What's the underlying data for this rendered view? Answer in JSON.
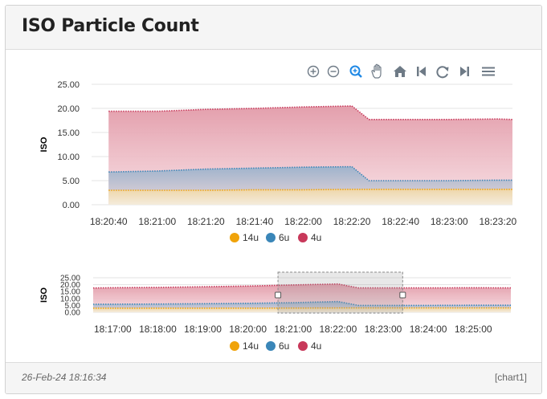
{
  "card": {
    "title": "ISO Particle Count",
    "footer_date": "26-Feb-24 18:16:34",
    "footer_id": "[chart1]"
  },
  "toolbar": {
    "icons": [
      "zoom-in-icon",
      "zoom-out-icon",
      "selection-zoom-icon",
      "pan-icon",
      "home-icon",
      "step-back-icon",
      "refresh-icon",
      "step-forward-icon",
      "menu-icon"
    ]
  },
  "colors": {
    "14u": "#f0a30a",
    "6u": "#3a86b8",
    "4u": "#c8385a",
    "4u_fill": "#e8a0ae",
    "6u_fill": "#9fb6d0",
    "14u_fill": "#f2d9b0"
  },
  "chart_data": [
    {
      "type": "area",
      "ylabel": "ISO",
      "ylim": [
        0,
        25
      ],
      "yticks": [
        "25.00",
        "20.00",
        "15.00",
        "10.00",
        "5.00",
        "0.00"
      ],
      "xticks": [
        "18:20:40",
        "18:21:00",
        "18:21:20",
        "18:21:40",
        "18:22:00",
        "18:22:20",
        "18:22:40",
        "18:23:00",
        "18:23:20"
      ],
      "grid": true,
      "legend_placement": "bottom",
      "x": [
        "18:20:40",
        "18:21:00",
        "18:21:20",
        "18:21:40",
        "18:22:00",
        "18:22:20",
        "18:22:27",
        "18:22:40",
        "18:23:00",
        "18:23:20",
        "18:23:26"
      ],
      "series": [
        {
          "name": "14u",
          "values": [
            3.0,
            3.0,
            3.0,
            3.1,
            3.1,
            3.2,
            3.2,
            3.2,
            3.2,
            3.2,
            3.2
          ]
        },
        {
          "name": "6u",
          "values": [
            6.8,
            7.0,
            7.4,
            7.6,
            7.8,
            7.9,
            5.0,
            5.0,
            5.0,
            5.1,
            5.1
          ]
        },
        {
          "name": "4u",
          "values": [
            19.4,
            19.4,
            19.8,
            20.0,
            20.3,
            20.5,
            17.7,
            17.7,
            17.7,
            17.8,
            17.7
          ]
        }
      ]
    },
    {
      "type": "area",
      "ylabel": "ISO",
      "ylim": [
        0,
        25
      ],
      "yticks": [
        "25.00",
        "20.00",
        "15.00",
        "10.00",
        "5.00",
        "0.00"
      ],
      "xticks": [
        "18:17:00",
        "18:18:00",
        "18:19:00",
        "18:20:00",
        "18:21:00",
        "18:22:00",
        "18:23:00",
        "18:24:00",
        "18:25:00"
      ],
      "grid": true,
      "legend_placement": "bottom",
      "x": [
        "18:16:34",
        "18:17:00",
        "18:18:00",
        "18:19:00",
        "18:20:00",
        "18:21:00",
        "18:22:00",
        "18:22:27",
        "18:23:00",
        "18:24:00",
        "18:25:00",
        "18:25:50"
      ],
      "series": [
        {
          "name": "14u",
          "values": [
            3.0,
            3.0,
            3.0,
            3.0,
            3.0,
            3.1,
            3.2,
            3.2,
            3.2,
            3.2,
            3.2,
            3.2
          ]
        },
        {
          "name": "6u",
          "values": [
            5.8,
            5.9,
            6.0,
            6.2,
            6.5,
            7.0,
            7.8,
            5.0,
            5.0,
            5.0,
            5.1,
            5.1
          ]
        },
        {
          "name": "4u",
          "values": [
            17.6,
            17.8,
            18.0,
            18.5,
            19.0,
            19.8,
            20.5,
            17.7,
            17.7,
            17.7,
            17.8,
            17.7
          ]
        }
      ],
      "selection_range": [
        "18:20:40",
        "18:23:26"
      ]
    }
  ]
}
